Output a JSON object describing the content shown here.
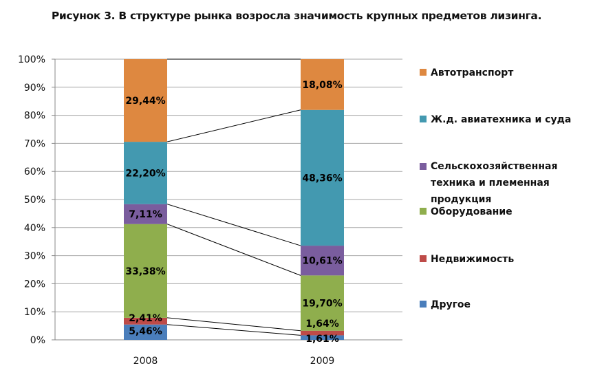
{
  "title": "Рисунок 3. В структуре рынка возросла значимость крупных предметов лизинга.",
  "chart_data": {
    "type": "bar",
    "stacked": "percent",
    "title": "Рисунок 3. В структуре рынка возросла значимость крупных предметов лизинга.",
    "categories": [
      "2008",
      "2009"
    ],
    "ylim": [
      0,
      100
    ],
    "yticks": [
      "0%",
      "10%",
      "20%",
      "30%",
      "40%",
      "50%",
      "60%",
      "70%",
      "80%",
      "90%",
      "100%"
    ],
    "grid": true,
    "legend_position": "right",
    "series": [
      {
        "name": "Другое",
        "color": "#4A7EBB",
        "values": [
          5.46,
          1.61
        ],
        "labels": [
          "5,46%",
          "1,61%"
        ]
      },
      {
        "name": "Недвижимость",
        "color": "#BE4B48",
        "values": [
          2.41,
          1.64
        ],
        "labels": [
          "2,41%",
          "1,64%"
        ]
      },
      {
        "name": "Оборудование",
        "color": "#8FAE4D",
        "values": [
          33.38,
          19.7
        ],
        "labels": [
          "33,38%",
          "19,70%"
        ]
      },
      {
        "name": "Сельскохозяйственная техника и племенная продукция",
        "color": "#7A5D9E",
        "values": [
          7.11,
          10.61
        ],
        "labels": [
          "7,11%",
          "10,61%"
        ]
      },
      {
        "name": "Ж.д. авиатехника и суда",
        "color": "#4399B0",
        "values": [
          22.2,
          48.36
        ],
        "labels": [
          "22,20%",
          "48,36%"
        ]
      },
      {
        "name": "Автотранспорт",
        "color": "#DE8840",
        "values": [
          29.44,
          18.08
        ],
        "labels": [
          "29,44%",
          "18,08%"
        ]
      }
    ]
  },
  "legend": {
    "auto": "Автотранспорт",
    "rail": "Ж.д. авиатехника и суда",
    "agri": "Сельскохозяйственная техника и племенная продукция",
    "equip": "Оборудование",
    "estate": "Недвижимость",
    "other": "Другое"
  }
}
